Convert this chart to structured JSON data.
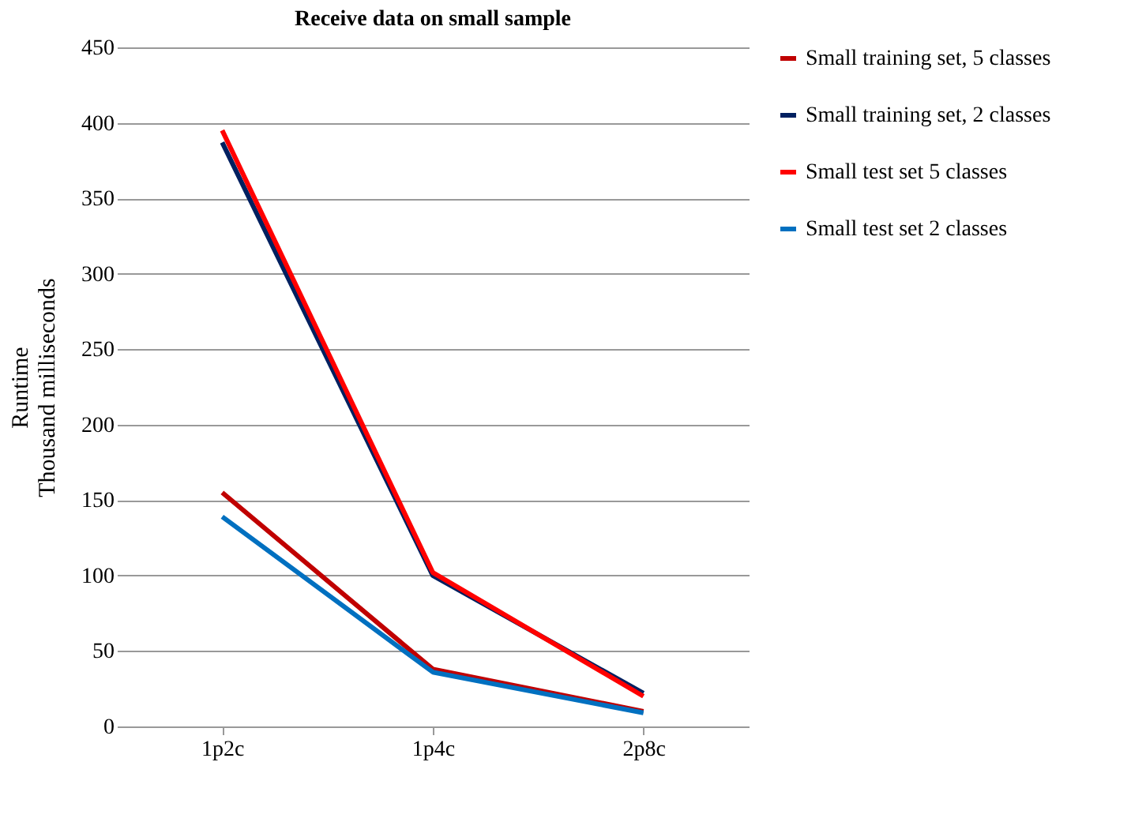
{
  "chart_data": {
    "type": "line",
    "title": "Receive data on small sample",
    "ylabel": [
      "Runtime",
      "Thousand milliseconds"
    ],
    "categories": [
      "1p2c",
      "1p4c",
      "2p8c"
    ],
    "series": [
      {
        "name": "Small training set, 5 classes",
        "color": "#c00000",
        "values": [
          155,
          38,
          10
        ]
      },
      {
        "name": "Small training set, 2 classes",
        "color": "#002060",
        "values": [
          387,
          100,
          22
        ]
      },
      {
        "name": "Small test set 5 classes",
        "color": "#ff0000",
        "values": [
          395,
          102,
          20
        ]
      },
      {
        "name": "Small test set 2 classes",
        "color": "#0070c0",
        "values": [
          139,
          36,
          9
        ]
      }
    ],
    "ylim": [
      0,
      450
    ],
    "yticks": [
      0,
      50,
      100,
      150,
      200,
      250,
      300,
      350,
      400,
      450
    ],
    "grid": "y",
    "legend": "right",
    "marker": "none",
    "line_style": "solid"
  }
}
